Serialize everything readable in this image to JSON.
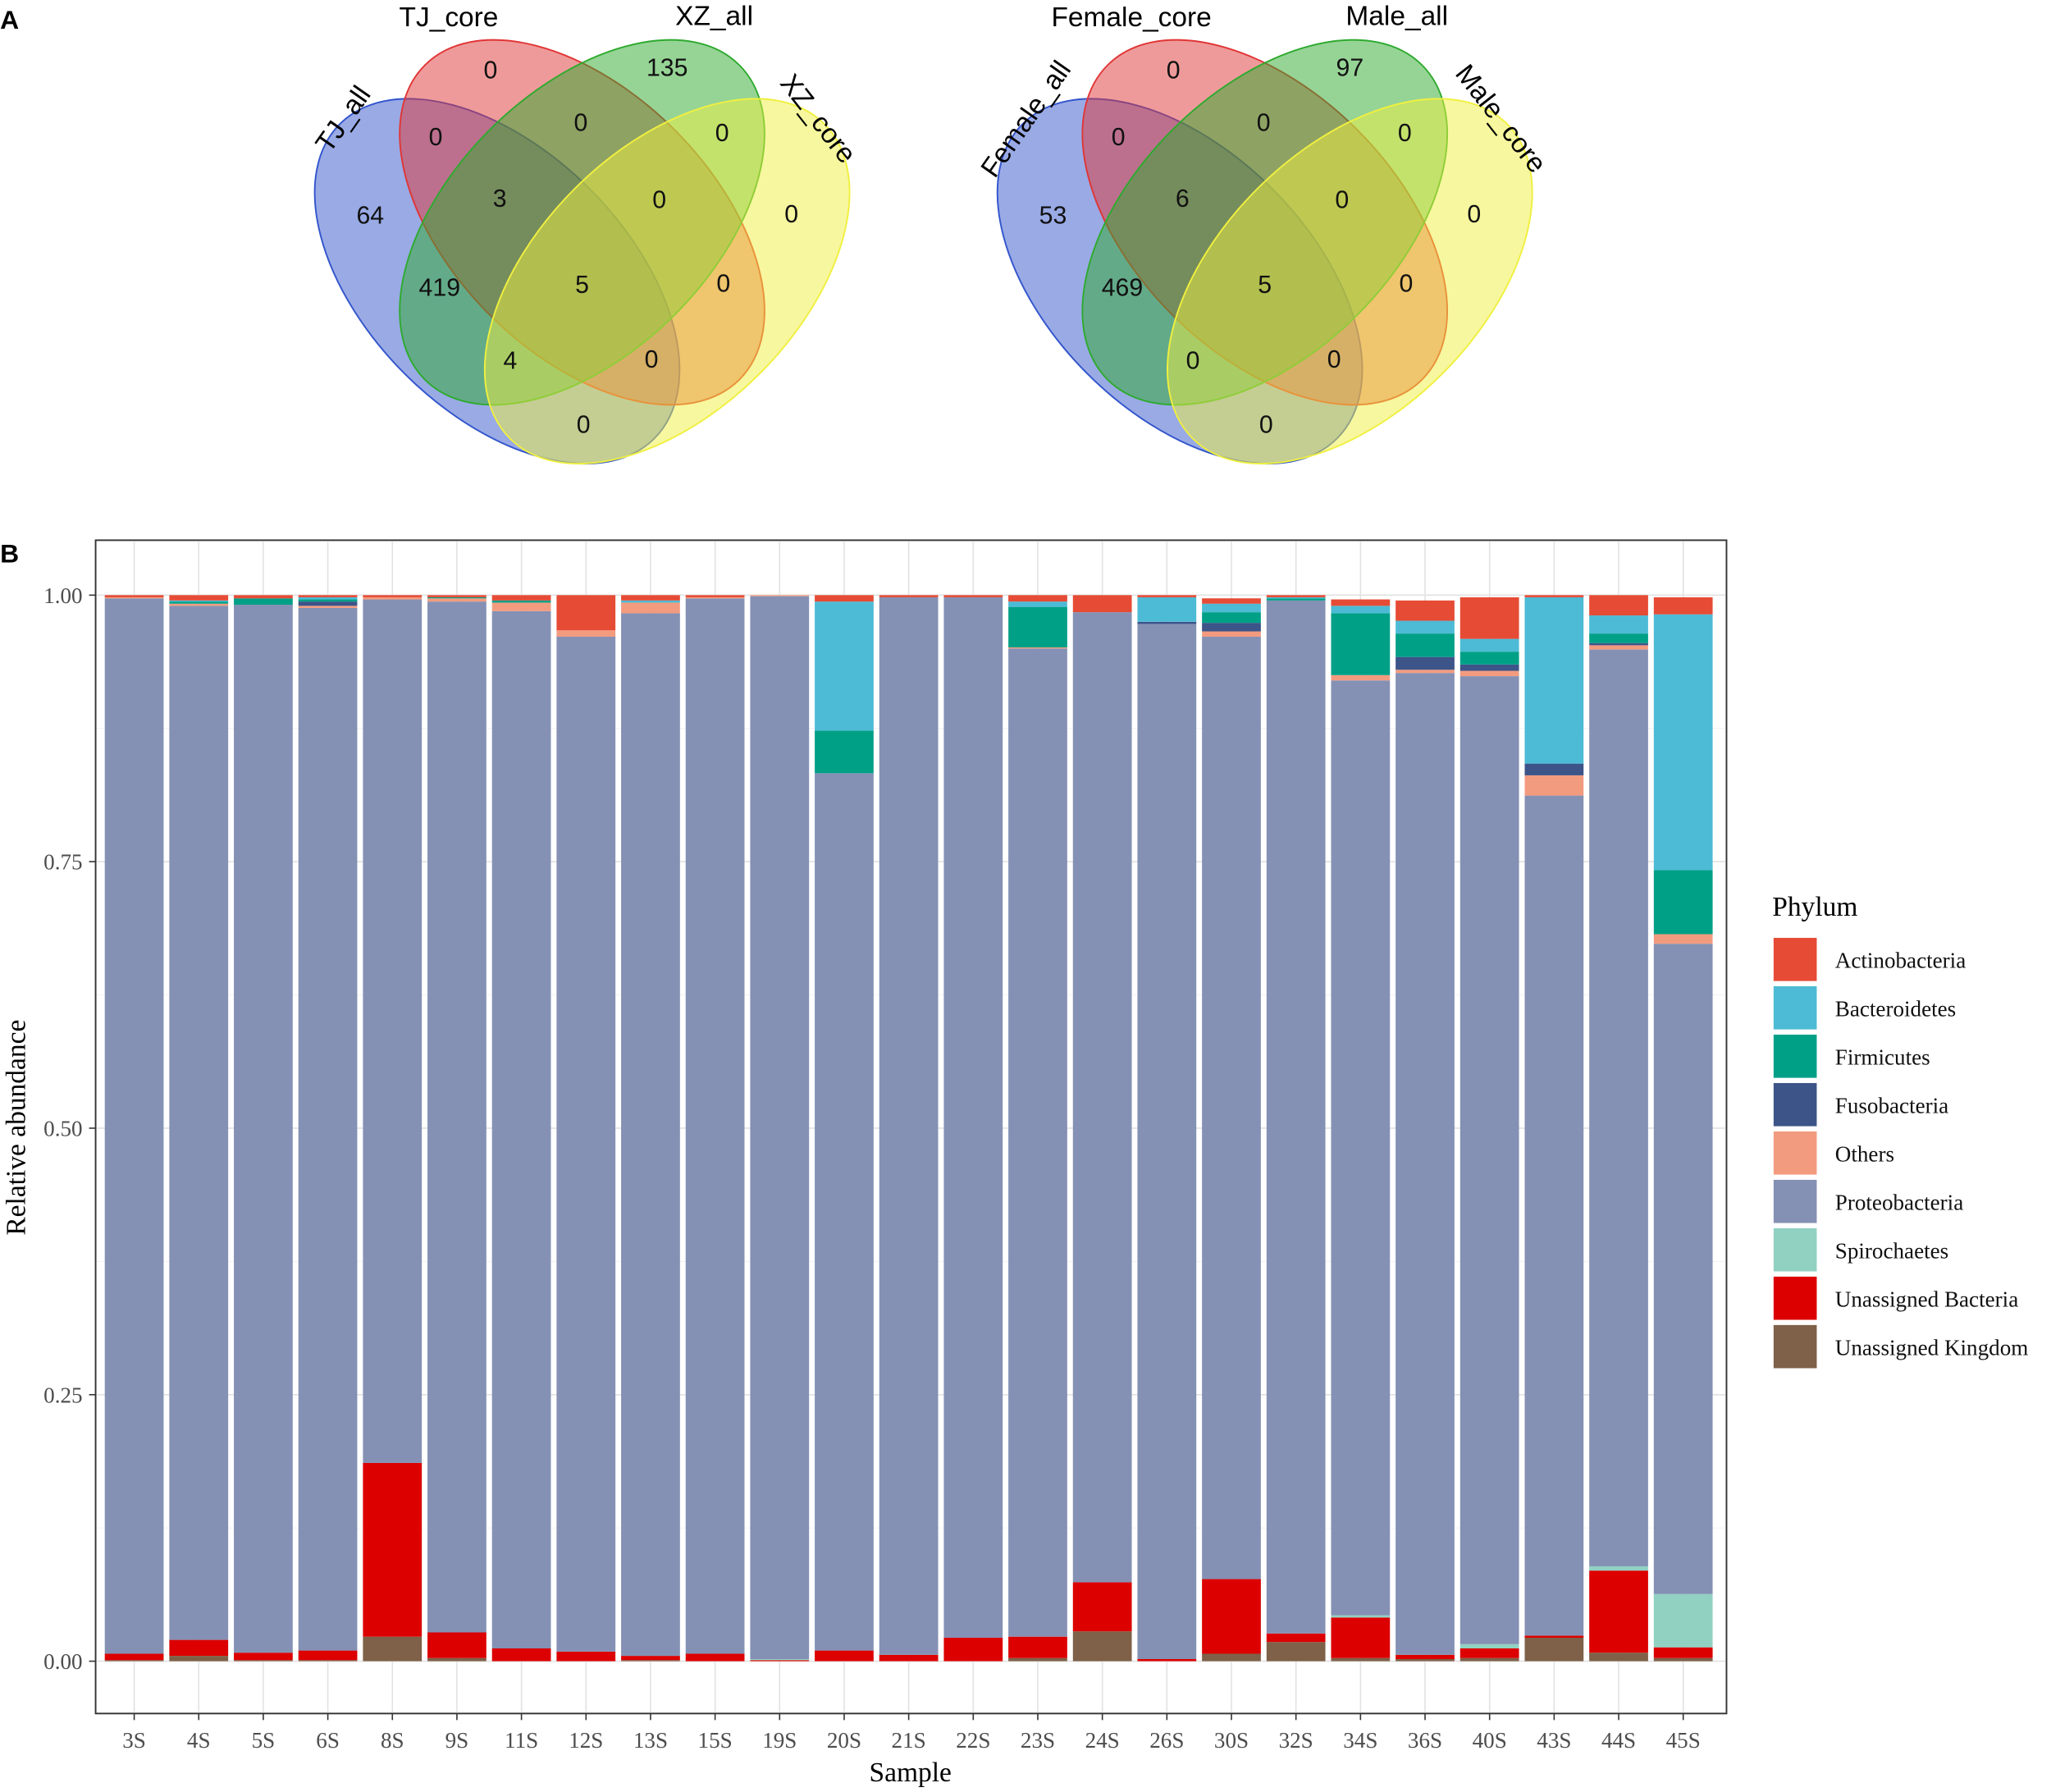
{
  "panels": {
    "a": "A",
    "b": "B"
  },
  "venn": [
    {
      "sets": [
        {
          "name": "TJ_all",
          "color": "#3355CC"
        },
        {
          "name": "TJ_core",
          "color": "#E03535"
        },
        {
          "name": "XZ_all",
          "color": "#2EAA2E"
        },
        {
          "name": "XZ_core",
          "color": "#F0F040"
        }
      ],
      "counts": {
        "TJ_core_only": "0",
        "XZ_all_only": "135",
        "TJ_all_TJ_core": "0",
        "TJ_core_XZ_all": "0",
        "XZ_all_XZ_core": "0",
        "TJ_all_only": "64",
        "TJ_all_TJ_core_XZ_all": "3",
        "TJ_core_XZ_all_XZ_core": "0",
        "XZ_core_only": "0",
        "TJ_all_XZ_all": "419",
        "all_four": "5",
        "TJ_core_XZ_core": "0",
        "TJ_all_XZ_all_XZ_core": "4",
        "TJ_all_TJ_core_XZ_core": "0",
        "TJ_all_XZ_core": "0"
      }
    },
    {
      "sets": [
        {
          "name": "Female_all",
          "color": "#3355CC"
        },
        {
          "name": "Female_core",
          "color": "#E03535"
        },
        {
          "name": "Male_all",
          "color": "#2EAA2E"
        },
        {
          "name": "Male_core",
          "color": "#F0F040"
        }
      ],
      "counts": {
        "TJ_core_only": "0",
        "XZ_all_only": "97",
        "TJ_all_TJ_core": "0",
        "TJ_core_XZ_all": "0",
        "XZ_all_XZ_core": "0",
        "TJ_all_only": "53",
        "TJ_all_TJ_core_XZ_all": "6",
        "TJ_core_XZ_all_XZ_core": "0",
        "XZ_core_only": "0",
        "TJ_all_XZ_all": "469",
        "all_four": "5",
        "TJ_core_XZ_core": "0",
        "TJ_all_XZ_all_XZ_core": "0",
        "TJ_all_TJ_core_XZ_core": "0",
        "TJ_all_XZ_core": "0"
      }
    }
  ],
  "chart_data": {
    "type": "bar",
    "stacked": true,
    "xlabel": "Sample",
    "ylabel": "Relative abundance",
    "ylim": [
      0,
      1
    ],
    "yticks": [
      "0.00",
      "0.25",
      "0.50",
      "0.75",
      "1.00"
    ],
    "grid": true,
    "legend": {
      "title": "Phylum",
      "placement": "right"
    },
    "categories": [
      "3S",
      "4S",
      "5S",
      "6S",
      "8S",
      "9S",
      "11S",
      "12S",
      "13S",
      "15S",
      "19S",
      "20S",
      "21S",
      "22S",
      "23S",
      "24S",
      "26S",
      "30S",
      "32S",
      "34S",
      "36S",
      "40S",
      "43S",
      "44S",
      "45S"
    ],
    "series": [
      {
        "name": "Actinobacteria",
        "color": "#E64B35",
        "values": [
          0.002,
          0.005,
          0.003,
          0.002,
          0.002,
          0.002,
          0.005,
          0.033,
          0.005,
          0.002,
          0,
          0.006,
          0.002,
          0.002,
          0.006,
          0.016,
          0.002,
          0.005,
          0.002,
          0.006,
          0.019,
          0.039,
          0.002,
          0.019,
          0.016
        ]
      },
      {
        "name": "Bacteroidetes",
        "color": "#4DBBD5",
        "values": [
          0,
          0.001,
          0,
          0.002,
          0,
          0,
          0,
          0,
          0.002,
          0,
          0,
          0.121,
          0,
          0,
          0.005,
          0,
          0.023,
          0.008,
          0.001,
          0.007,
          0.012,
          0.012,
          0.156,
          0.017,
          0.24
        ]
      },
      {
        "name": "Firmicutes",
        "color": "#00A087",
        "values": [
          0,
          0.002,
          0.006,
          0.002,
          0,
          0.001,
          0.002,
          0,
          0,
          0,
          0,
          0.04,
          0,
          0,
          0.038,
          0,
          0,
          0.01,
          0.002,
          0.058,
          0.022,
          0.012,
          0,
          0.009,
          0.06
        ]
      },
      {
        "name": "Fusobacteria",
        "color": "#3C5488",
        "values": [
          0,
          0,
          0,
          0.004,
          0,
          0,
          0,
          0,
          0,
          0,
          0,
          0,
          0,
          0,
          0,
          0,
          0.002,
          0.008,
          0,
          0,
          0.012,
          0.006,
          0.011,
          0.002,
          0
        ]
      },
      {
        "name": "Others",
        "color": "#F39B7F",
        "values": [
          0.001,
          0.002,
          0,
          0.002,
          0.002,
          0.003,
          0.008,
          0.006,
          0.01,
          0.001,
          0.001,
          0,
          0,
          0,
          0.001,
          0,
          0,
          0.005,
          0,
          0.005,
          0.003,
          0.005,
          0.019,
          0.004,
          0.009
        ]
      },
      {
        "name": "Proteobacteria",
        "color": "#8491B4",
        "values": [
          0.99,
          0.97,
          0.983,
          0.978,
          0.81,
          0.967,
          0.973,
          0.952,
          0.978,
          0.99,
          0.997,
          0.823,
          0.992,
          0.976,
          0.927,
          0.91,
          0.971,
          0.884,
          0.969,
          0.877,
          0.921,
          0.908,
          0.788,
          0.86,
          0.61
        ]
      },
      {
        "name": "Spirochaetes",
        "color": "#91D1C2",
        "values": [
          0,
          0,
          0,
          0,
          0,
          0,
          0,
          0,
          0,
          0,
          0.001,
          0,
          0,
          0,
          0,
          0,
          0,
          0,
          0,
          0.002,
          0,
          0.004,
          0,
          0.004,
          0.05
        ]
      },
      {
        "name": "Unassigned Bacteria",
        "color": "#DC0000",
        "values": [
          0.006,
          0.015,
          0.007,
          0.009,
          0.163,
          0.024,
          0.012,
          0.009,
          0.004,
          0.007,
          0.001,
          0.01,
          0.006,
          0.022,
          0.02,
          0.046,
          0.002,
          0.07,
          0.008,
          0.038,
          0.004,
          0.009,
          0.002,
          0.077,
          0.01
        ]
      },
      {
        "name": "Unassigned Kingdom",
        "color": "#7E6148",
        "values": [
          0.001,
          0.005,
          0.001,
          0.001,
          0.023,
          0.003,
          0,
          0,
          0.001,
          0,
          0,
          0,
          0,
          0,
          0.003,
          0.028,
          0,
          0.007,
          0.018,
          0.003,
          0.002,
          0.003,
          0.022,
          0.008,
          0.003
        ]
      }
    ]
  }
}
